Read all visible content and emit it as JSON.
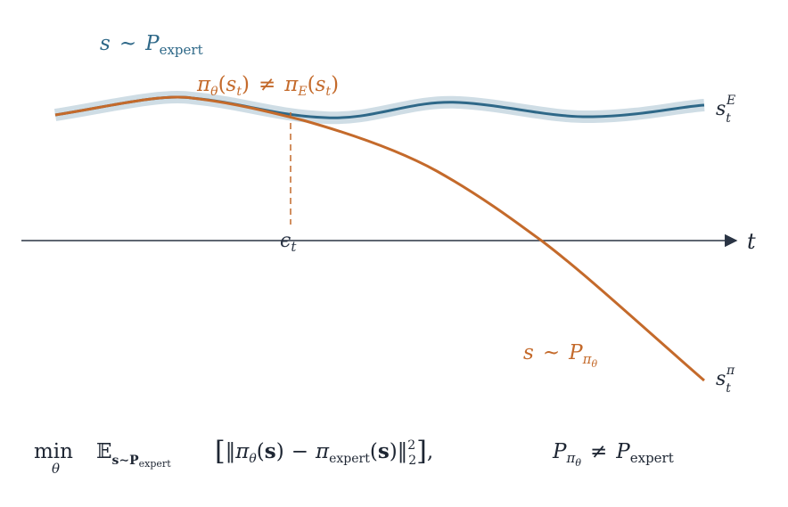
{
  "colors": {
    "expert": "#2e6888",
    "expert_band": "#cfdde5",
    "policy": "#c46a2b",
    "axis": "#2a3444",
    "text": "#1e2633"
  },
  "labels": {
    "expert_dist": {
      "s": "s",
      "sim": "~",
      "P": "P",
      "sub": "expert"
    },
    "mismatch": {
      "pi": "π",
      "theta": "θ",
      "s": "s",
      "t": "t",
      "neq": "≠",
      "E": "E"
    },
    "expert_end": {
      "s": "s",
      "sub": "t",
      "sup": "E"
    },
    "policy_end": {
      "s": "s",
      "sub": "t",
      "sup": "π"
    },
    "policy_dist": {
      "s": "s",
      "sim": "~",
      "P": "P",
      "pi": "π",
      "theta": "θ"
    },
    "eps": {
      "eps": "ϵ",
      "sub": "t"
    },
    "axis_t": "t"
  },
  "formula": {
    "min": "min",
    "theta": "θ",
    "E": "𝔼",
    "E_sub": "s∼P",
    "E_subsub": "expert",
    "pi": "π",
    "s_bold": "s",
    "minus": "−",
    "expert": "expert",
    "power": "2",
    "lower": "2",
    "neq": "≠",
    "P": "P",
    "pi_theta_sub": "π",
    "theta_sub": "θ"
  }
}
